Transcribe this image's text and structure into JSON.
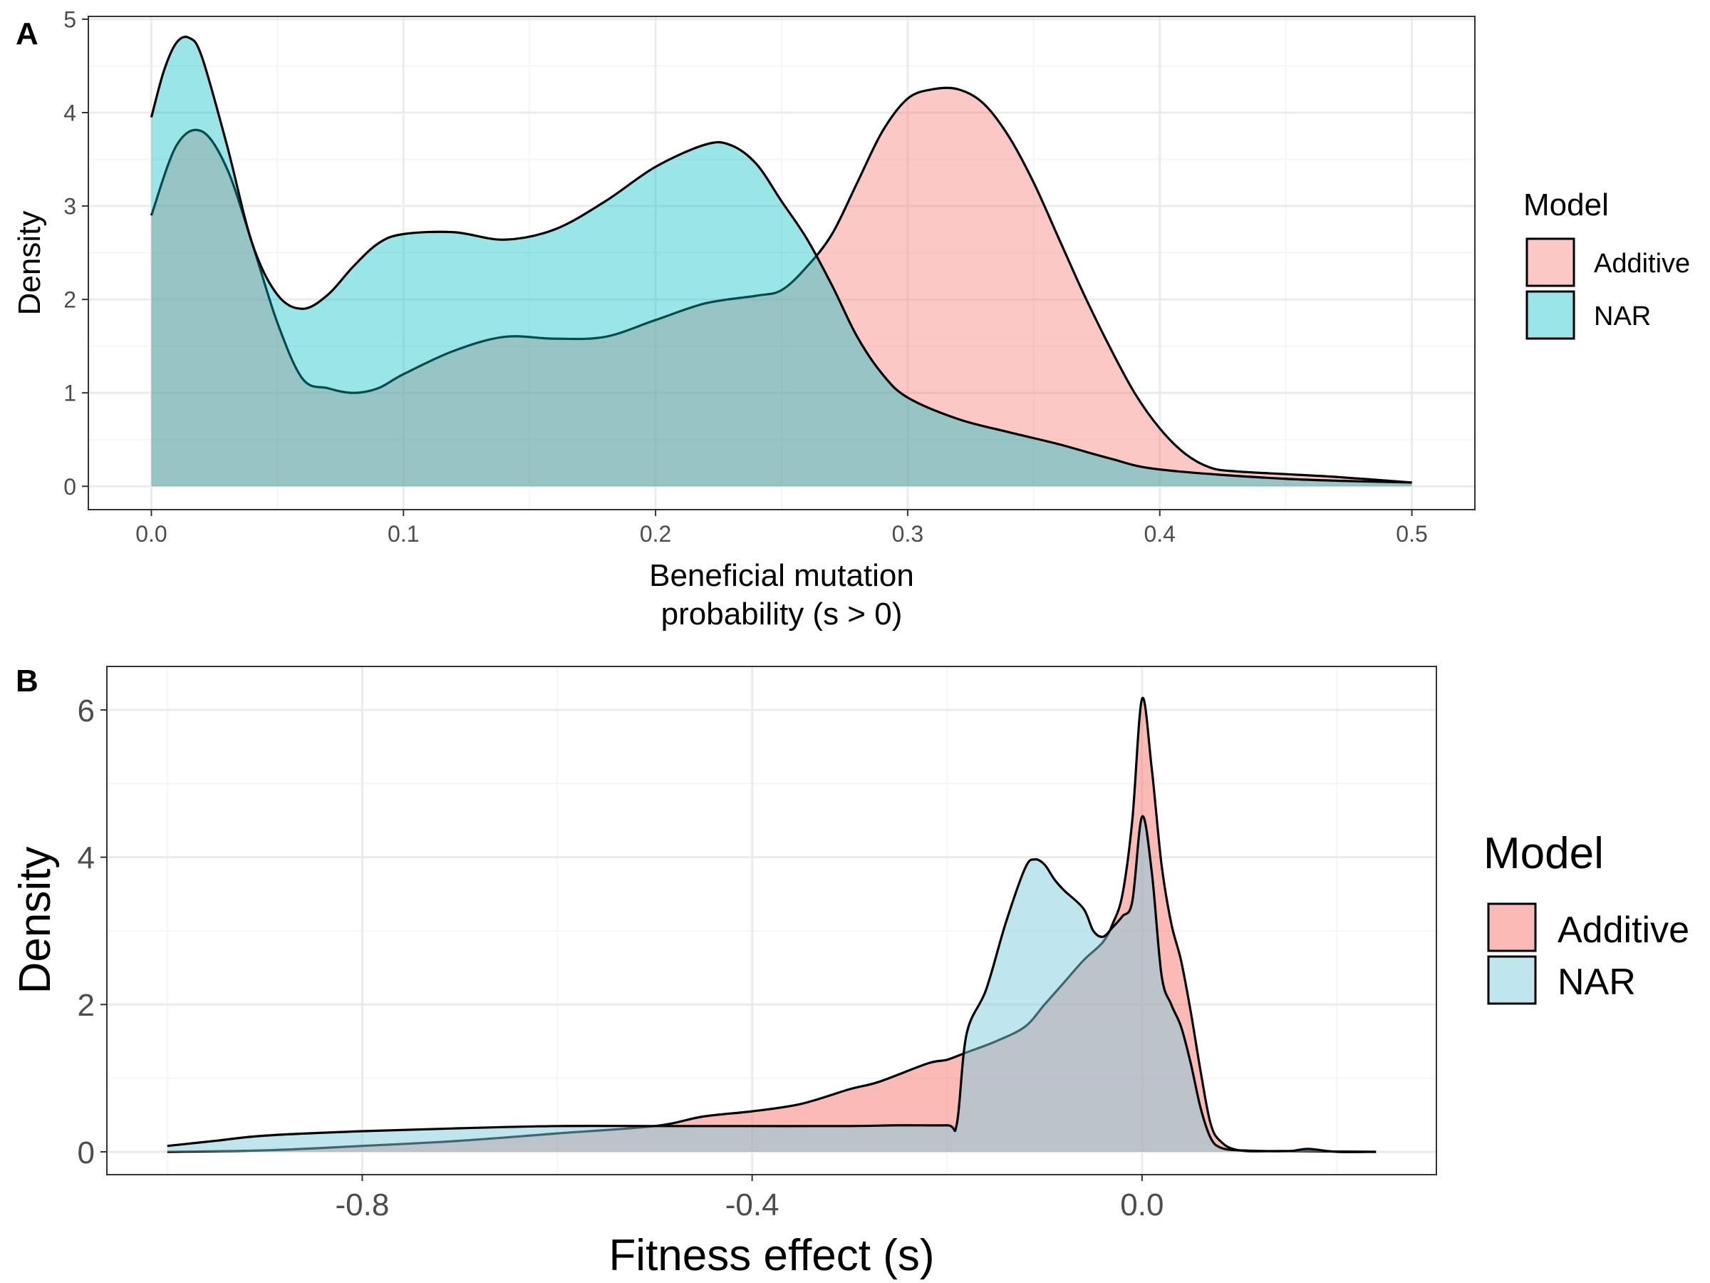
{
  "panel_labels": [
    "A",
    "B"
  ],
  "colors": {
    "additive": "#F8766D",
    "nar": "#00BFC4",
    "nar_b": "#7FCCE0",
    "outline": "#000000",
    "grid_major": "#EBEBEB",
    "grid_minor": "#F5F5F5",
    "panel_border": "#333333",
    "axis_text": "#4D4D4D"
  },
  "chart_data": [
    {
      "type": "area",
      "panel": "A",
      "xlabel_line1": "Beneficial mutation",
      "xlabel_line2": "probability (s > 0)",
      "ylabel": "Density",
      "xlim": [
        0.0,
        0.5
      ],
      "ylim": [
        0,
        5
      ],
      "x_ticks": [
        0.0,
        0.1,
        0.2,
        0.3,
        0.4,
        0.5
      ],
      "x_tick_labels": [
        "0.0",
        "0.1",
        "0.2",
        "0.3",
        "0.4",
        "0.5"
      ],
      "y_ticks": [
        0,
        1,
        2,
        3,
        4,
        5
      ],
      "y_tick_labels": [
        "0",
        "1",
        "2",
        "3",
        "4",
        "5"
      ],
      "grid": true,
      "legend_title": "Model",
      "legend_position": "right",
      "series": [
        {
          "name": "Additive",
          "points": [
            [
              0.0,
              2.9
            ],
            [
              0.01,
              3.65
            ],
            [
              0.02,
              3.8
            ],
            [
              0.03,
              3.4
            ],
            [
              0.04,
              2.6
            ],
            [
              0.05,
              1.75
            ],
            [
              0.06,
              1.15
            ],
            [
              0.07,
              1.05
            ],
            [
              0.08,
              1.0
            ],
            [
              0.09,
              1.05
            ],
            [
              0.1,
              1.2
            ],
            [
              0.12,
              1.45
            ],
            [
              0.14,
              1.6
            ],
            [
              0.16,
              1.58
            ],
            [
              0.18,
              1.6
            ],
            [
              0.2,
              1.78
            ],
            [
              0.22,
              1.96
            ],
            [
              0.24,
              2.04
            ],
            [
              0.25,
              2.1
            ],
            [
              0.26,
              2.35
            ],
            [
              0.27,
              2.7
            ],
            [
              0.28,
              3.25
            ],
            [
              0.29,
              3.8
            ],
            [
              0.3,
              4.15
            ],
            [
              0.31,
              4.25
            ],
            [
              0.32,
              4.25
            ],
            [
              0.33,
              4.1
            ],
            [
              0.34,
              3.75
            ],
            [
              0.35,
              3.25
            ],
            [
              0.36,
              2.65
            ],
            [
              0.37,
              2.05
            ],
            [
              0.38,
              1.5
            ],
            [
              0.39,
              1.0
            ],
            [
              0.4,
              0.62
            ],
            [
              0.41,
              0.35
            ],
            [
              0.42,
              0.2
            ],
            [
              0.43,
              0.16
            ],
            [
              0.45,
              0.13
            ],
            [
              0.47,
              0.1
            ],
            [
              0.5,
              0.04
            ]
          ]
        },
        {
          "name": "NAR",
          "points": [
            [
              0.0,
              3.95
            ],
            [
              0.005,
              4.45
            ],
            [
              0.01,
              4.75
            ],
            [
              0.015,
              4.8
            ],
            [
              0.02,
              4.6
            ],
            [
              0.03,
              3.65
            ],
            [
              0.04,
              2.6
            ],
            [
              0.05,
              2.05
            ],
            [
              0.06,
              1.9
            ],
            [
              0.07,
              2.05
            ],
            [
              0.08,
              2.35
            ],
            [
              0.09,
              2.6
            ],
            [
              0.1,
              2.7
            ],
            [
              0.12,
              2.72
            ],
            [
              0.14,
              2.64
            ],
            [
              0.16,
              2.75
            ],
            [
              0.18,
              3.05
            ],
            [
              0.2,
              3.42
            ],
            [
              0.22,
              3.66
            ],
            [
              0.23,
              3.65
            ],
            [
              0.24,
              3.45
            ],
            [
              0.25,
              3.05
            ],
            [
              0.26,
              2.65
            ],
            [
              0.27,
              2.15
            ],
            [
              0.28,
              1.6
            ],
            [
              0.29,
              1.2
            ],
            [
              0.3,
              0.95
            ],
            [
              0.32,
              0.72
            ],
            [
              0.34,
              0.58
            ],
            [
              0.36,
              0.45
            ],
            [
              0.38,
              0.3
            ],
            [
              0.4,
              0.18
            ],
            [
              0.45,
              0.08
            ],
            [
              0.5,
              0.04
            ]
          ]
        }
      ]
    },
    {
      "type": "area",
      "panel": "B",
      "xlabel": "Fitness effect (s)",
      "ylabel": "Density",
      "xlim": [
        -1.0,
        0.24
      ],
      "ylim": [
        0,
        6
      ],
      "x_ticks": [
        -0.8,
        -0.4,
        0.0
      ],
      "x_tick_labels": [
        "-0.8",
        "-0.4",
        "0.0"
      ],
      "y_ticks": [
        0,
        2,
        4,
        6
      ],
      "y_tick_labels": [
        "0",
        "2",
        "4",
        "6"
      ],
      "grid": true,
      "legend_title": "Model",
      "legend_position": "right",
      "series": [
        {
          "name": "Additive",
          "points": [
            [
              -1.0,
              0.0
            ],
            [
              -0.9,
              0.02
            ],
            [
              -0.8,
              0.08
            ],
            [
              -0.7,
              0.15
            ],
            [
              -0.6,
              0.25
            ],
            [
              -0.5,
              0.35
            ],
            [
              -0.45,
              0.48
            ],
            [
              -0.4,
              0.55
            ],
            [
              -0.35,
              0.65
            ],
            [
              -0.3,
              0.85
            ],
            [
              -0.27,
              0.95
            ],
            [
              -0.22,
              1.2
            ],
            [
              -0.2,
              1.25
            ],
            [
              -0.18,
              1.35
            ],
            [
              -0.15,
              1.5
            ],
            [
              -0.12,
              1.7
            ],
            [
              -0.1,
              2.0
            ],
            [
              -0.08,
              2.3
            ],
            [
              -0.06,
              2.6
            ],
            [
              -0.04,
              2.85
            ],
            [
              -0.03,
              3.1
            ],
            [
              -0.02,
              3.5
            ],
            [
              -0.01,
              4.5
            ],
            [
              0.0,
              6.15
            ],
            [
              0.01,
              5.2
            ],
            [
              0.02,
              3.9
            ],
            [
              0.03,
              3.1
            ],
            [
              0.04,
              2.6
            ],
            [
              0.05,
              1.9
            ],
            [
              0.06,
              1.1
            ],
            [
              0.07,
              0.4
            ],
            [
              0.08,
              0.15
            ],
            [
              0.1,
              0.02
            ],
            [
              0.15,
              0.01
            ],
            [
              0.24,
              0.0
            ]
          ]
        },
        {
          "name": "NAR",
          "points": [
            [
              -1.0,
              0.08
            ],
            [
              -0.95,
              0.15
            ],
            [
              -0.9,
              0.22
            ],
            [
              -0.8,
              0.28
            ],
            [
              -0.7,
              0.32
            ],
            [
              -0.6,
              0.35
            ],
            [
              -0.5,
              0.35
            ],
            [
              -0.4,
              0.35
            ],
            [
              -0.3,
              0.35
            ],
            [
              -0.25,
              0.36
            ],
            [
              -0.2,
              0.36
            ],
            [
              -0.19,
              0.38
            ],
            [
              -0.18,
              1.6
            ],
            [
              -0.16,
              2.2
            ],
            [
              -0.14,
              3.1
            ],
            [
              -0.12,
              3.85
            ],
            [
              -0.11,
              3.97
            ],
            [
              -0.1,
              3.9
            ],
            [
              -0.09,
              3.7
            ],
            [
              -0.08,
              3.55
            ],
            [
              -0.06,
              3.3
            ],
            [
              -0.05,
              3.0
            ],
            [
              -0.04,
              2.92
            ],
            [
              -0.03,
              3.05
            ],
            [
              -0.02,
              3.2
            ],
            [
              -0.01,
              3.4
            ],
            [
              0.0,
              4.55
            ],
            [
              0.01,
              3.8
            ],
            [
              0.02,
              2.4
            ],
            [
              0.03,
              2.0
            ],
            [
              0.04,
              1.7
            ],
            [
              0.05,
              1.2
            ],
            [
              0.06,
              0.6
            ],
            [
              0.07,
              0.2
            ],
            [
              0.08,
              0.06
            ],
            [
              0.1,
              0.02
            ],
            [
              0.15,
              0.01
            ],
            [
              0.17,
              0.04
            ],
            [
              0.2,
              0.0
            ],
            [
              0.24,
              0.0
            ]
          ]
        }
      ]
    }
  ]
}
